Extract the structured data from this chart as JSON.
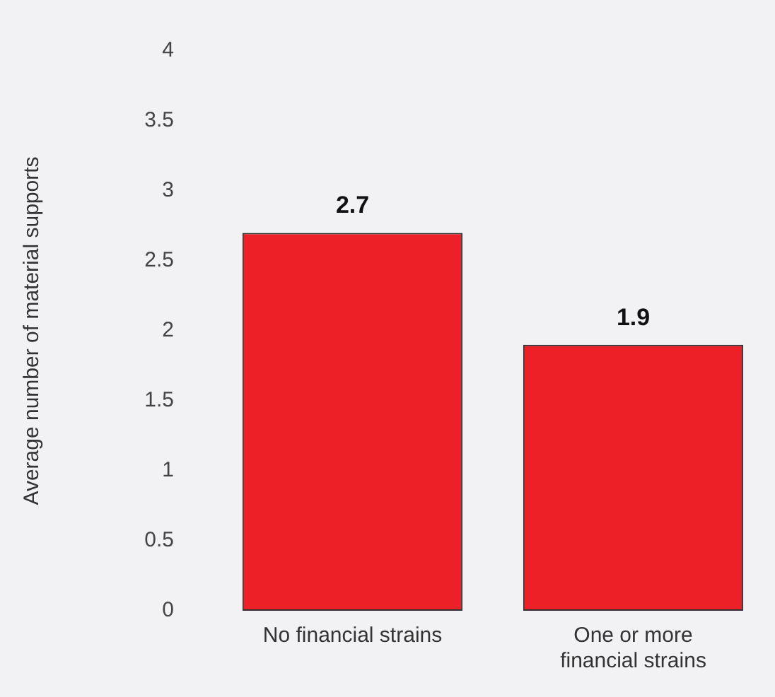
{
  "chart_data": {
    "type": "bar",
    "ylabel": "Average number of material supports",
    "categories": [
      "No financial strains",
      "One or more financial strains"
    ],
    "values": [
      2.7,
      1.9
    ],
    "color": "#ed1f27",
    "ylim": [
      0,
      4
    ],
    "yticks": [
      0,
      0.5,
      1,
      1.5,
      2,
      2.5,
      3,
      3.5,
      4
    ],
    "data_labels": true
  }
}
